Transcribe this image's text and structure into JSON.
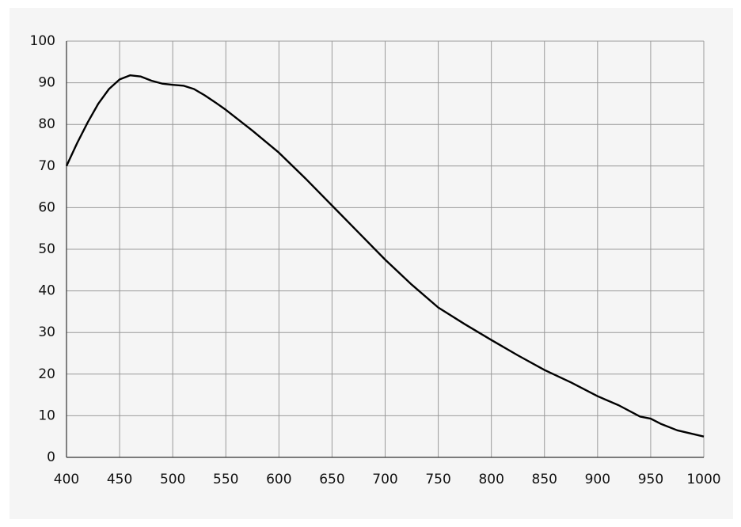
{
  "chart_data": {
    "type": "line",
    "x": [
      400,
      410,
      420,
      430,
      440,
      450,
      460,
      470,
      480,
      490,
      500,
      510,
      520,
      530,
      540,
      550,
      575,
      600,
      625,
      650,
      675,
      700,
      725,
      750,
      775,
      800,
      825,
      850,
      875,
      900,
      920,
      940,
      950,
      960,
      975,
      1000
    ],
    "series": [
      {
        "color": "#000000",
        "values": [
          70,
          75.5,
          80.5,
          85,
          88.5,
          90.8,
          91.8,
          91.5,
          90.5,
          89.8,
          89.5,
          89.3,
          88.5,
          87,
          85.3,
          83.5,
          78.5,
          73.2,
          67,
          60.5,
          54,
          47.5,
          41.5,
          36,
          32,
          28.2,
          24.5,
          21,
          18,
          14.7,
          12.5,
          9.8,
          9.3,
          8,
          6.5,
          5
        ]
      }
    ],
    "xlim": [
      400,
      1000
    ],
    "xticks": [
      400,
      450,
      500,
      550,
      600,
      650,
      700,
      750,
      800,
      850,
      900,
      950,
      1000
    ],
    "ylim": [
      0,
      100
    ],
    "yticks": [
      0,
      10,
      20,
      30,
      40,
      50,
      60,
      70,
      80,
      90,
      100
    ],
    "grid": true
  }
}
